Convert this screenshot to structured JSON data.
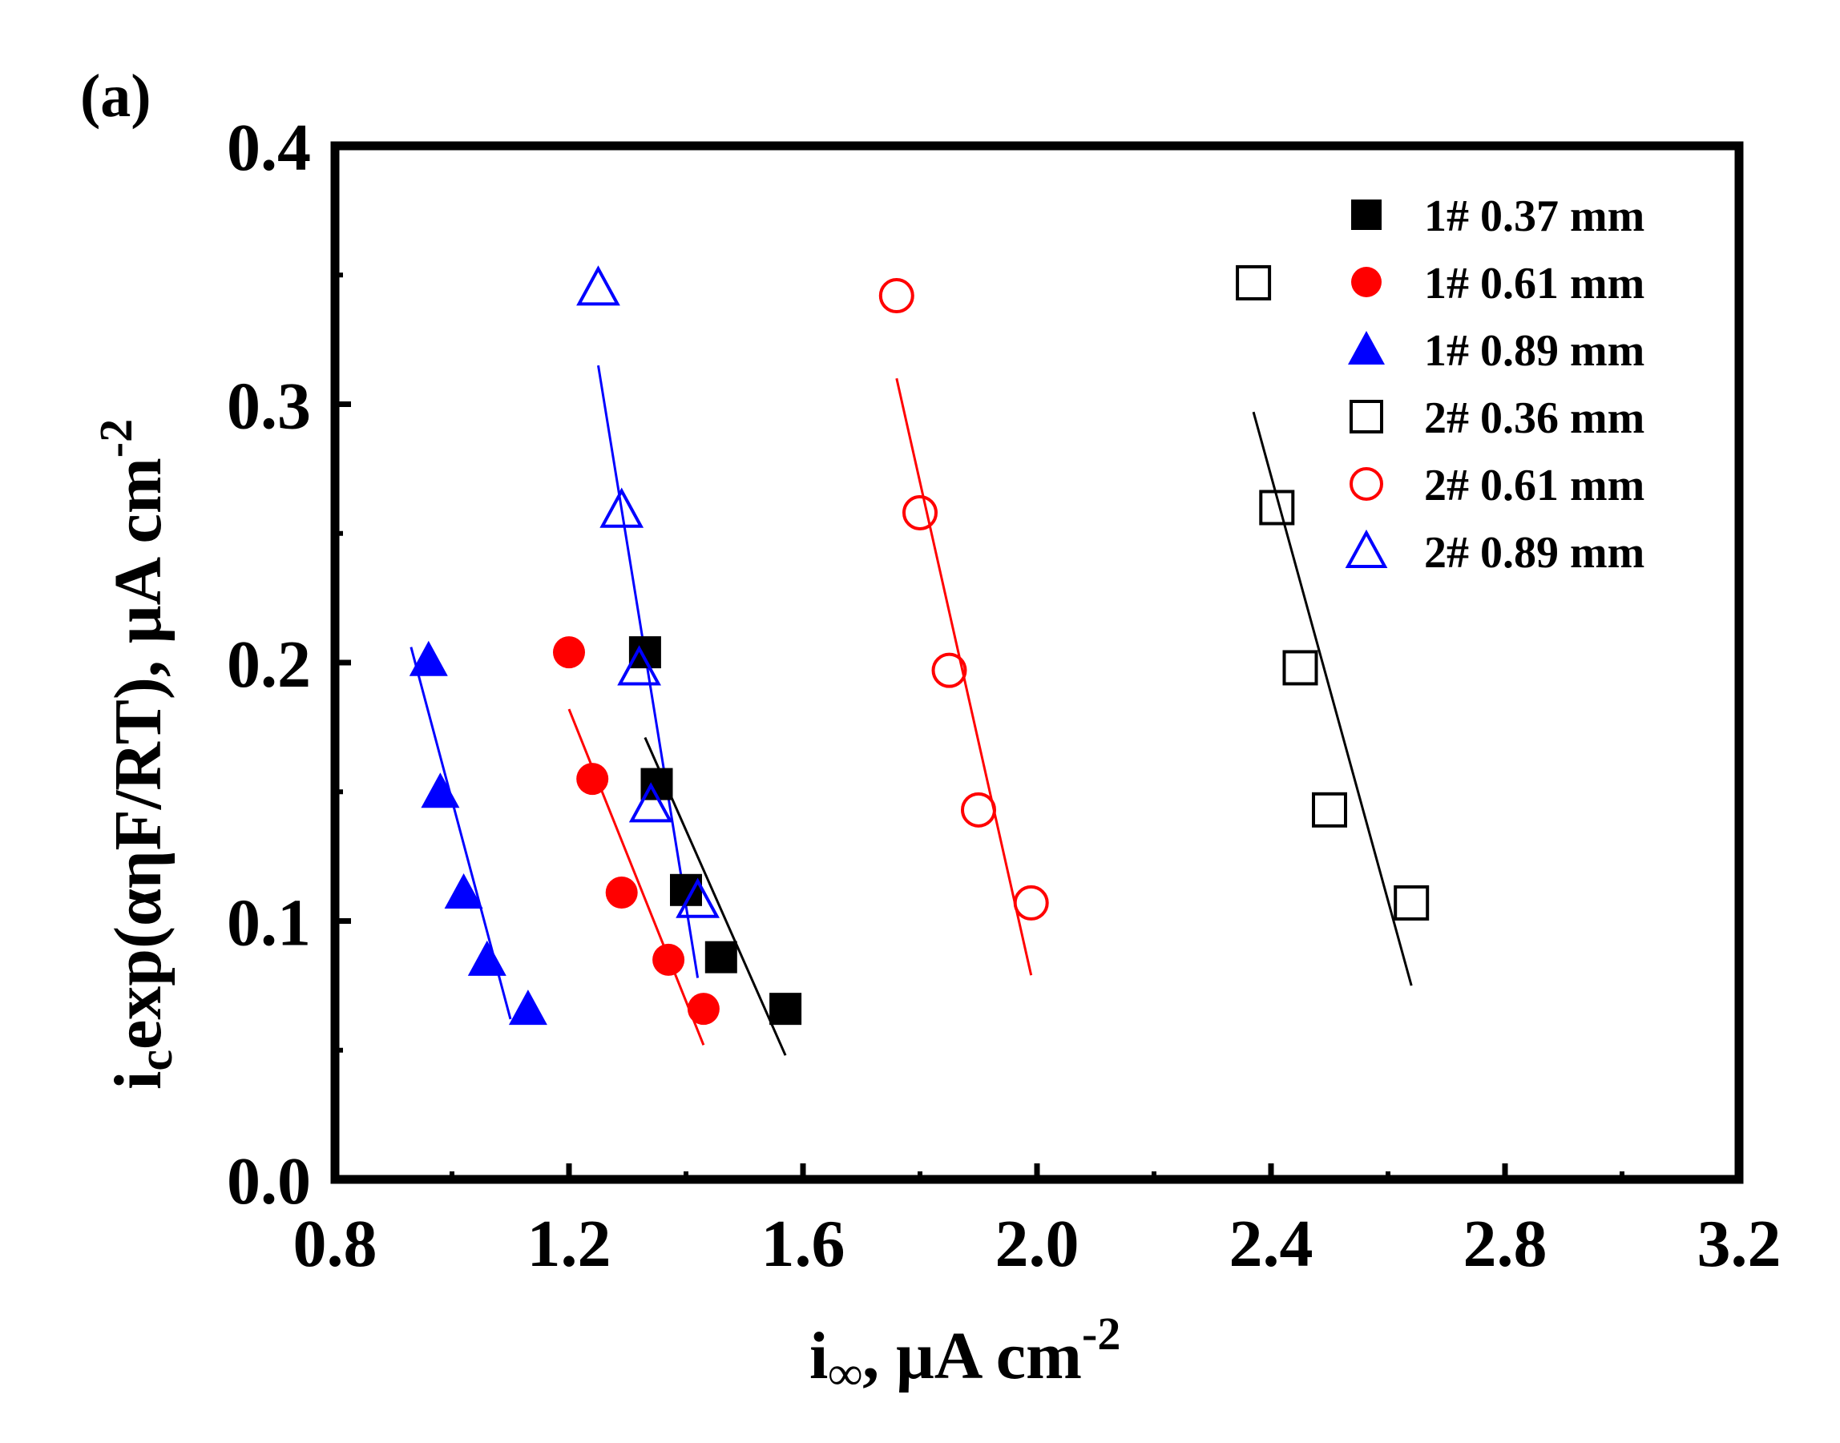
{
  "chart_data": {
    "type": "scatter",
    "panel_label": "(a)",
    "xlabel": "i∞, μA cm-2",
    "xlabel_parts": {
      "main": "i",
      "sub": "∞",
      "rest": ", μA cm",
      "sup": "-2"
    },
    "ylabel": "icexp(αηF/RT), μA cm-2",
    "ylabel_parts": {
      "main": "i",
      "sub": "c",
      "rest": "exp(αηF/RT),  μA cm",
      "sup": "-2"
    },
    "xlim": [
      0.8,
      3.2
    ],
    "ylim": [
      0.0,
      0.4
    ],
    "xticks": [
      "0.8",
      "1.2",
      "1.6",
      "2.0",
      "2.4",
      "2.8",
      "3.2"
    ],
    "yticks": [
      "0.0",
      "0.1",
      "0.2",
      "0.3",
      "0.4"
    ],
    "legend_position": "top-right",
    "series": [
      {
        "name": "1# 0.37 mm",
        "marker": "square",
        "filled": true,
        "color": "#000000",
        "x": [
          1.33,
          1.35,
          1.4,
          1.46,
          1.57
        ],
        "y": [
          0.204,
          0.153,
          0.112,
          0.086,
          0.066
        ],
        "fit_x": [
          1.33,
          1.57
        ],
        "fit_y": [
          0.171,
          0.048
        ]
      },
      {
        "name": "1# 0.61 mm",
        "marker": "circle",
        "filled": true,
        "color": "#ff0000",
        "x": [
          1.2,
          1.24,
          1.29,
          1.37,
          1.43
        ],
        "y": [
          0.204,
          0.155,
          0.111,
          0.085,
          0.066
        ],
        "fit_x": [
          1.2,
          1.43
        ],
        "fit_y": [
          0.182,
          0.052
        ]
      },
      {
        "name": "1# 0.89 mm",
        "marker": "triangle",
        "filled": true,
        "color": "#0000ff",
        "x": [
          0.96,
          0.98,
          1.02,
          1.06,
          1.13
        ],
        "y": [
          0.201,
          0.15,
          0.111,
          0.085,
          0.066
        ],
        "fit_x": [
          0.93,
          1.1
        ],
        "fit_y": [
          0.206,
          0.062
        ]
      },
      {
        "name": "2# 0.36 mm",
        "marker": "square",
        "filled": false,
        "color": "#000000",
        "x": [
          2.37,
          2.41,
          2.45,
          2.5,
          2.64
        ],
        "y": [
          0.347,
          0.26,
          0.198,
          0.143,
          0.107
        ],
        "fit_x": [
          2.37,
          2.64
        ],
        "fit_y": [
          0.297,
          0.075
        ]
      },
      {
        "name": "2# 0.61 mm",
        "marker": "circle",
        "filled": false,
        "color": "#ff0000",
        "x": [
          1.76,
          1.8,
          1.85,
          1.9,
          1.99
        ],
        "y": [
          0.342,
          0.258,
          0.197,
          0.143,
          0.107
        ],
        "fit_x": [
          1.76,
          1.99
        ],
        "fit_y": [
          0.31,
          0.079
        ]
      },
      {
        "name": "2# 0.89 mm",
        "marker": "triangle",
        "filled": false,
        "color": "#0000ff",
        "x": [
          1.25,
          1.29,
          1.32,
          1.34,
          1.42
        ],
        "y": [
          0.345,
          0.259,
          0.198,
          0.145,
          0.108
        ],
        "fit_x": [
          1.25,
          1.42
        ],
        "fit_y": [
          0.315,
          0.078
        ]
      }
    ]
  }
}
